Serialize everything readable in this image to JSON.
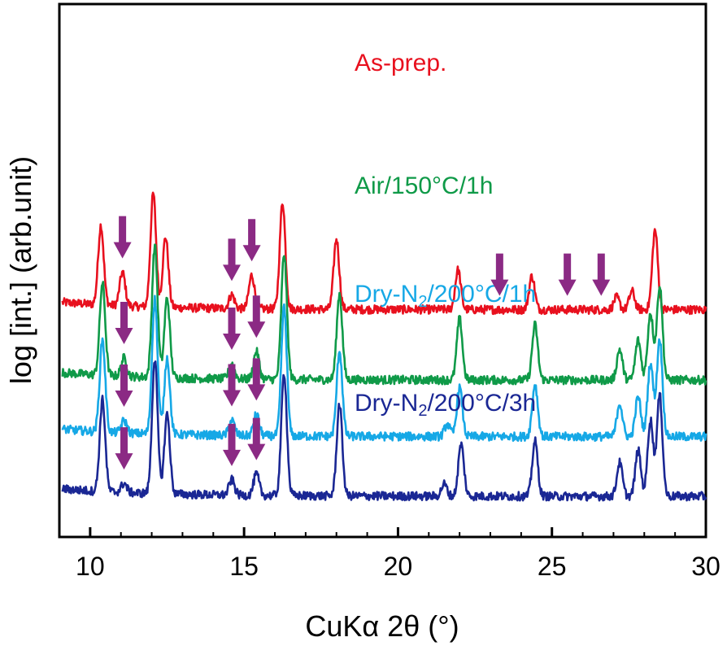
{
  "chart_data": {
    "type": "line",
    "title": "",
    "xlabel": "CuKα 2θ (°)",
    "ylabel": "log [int.] (arb.unit)",
    "xlim": [
      9,
      30
    ],
    "xticks": [
      10,
      15,
      20,
      25,
      30
    ],
    "y_ticks_shown": false,
    "grid": false,
    "legend": "none; series labeled inline above each trace",
    "series": [
      {
        "key": "as_prep",
        "label_parts": [
          [
            "As-prep.",
            ""
          ]
        ],
        "color": "#e8101e",
        "baseline": 6.1,
        "noise": 0.14,
        "peaks": [
          [
            10.35,
            2.6
          ],
          [
            11.05,
            1.1
          ],
          [
            12.05,
            3.7
          ],
          [
            12.45,
            2.3
          ],
          [
            14.6,
            0.45
          ],
          [
            15.25,
            1.1
          ],
          [
            16.25,
            3.5
          ],
          [
            18.0,
            2.3
          ],
          [
            21.95,
            1.3
          ],
          [
            24.35,
            1.1
          ],
          [
            27.1,
            0.4
          ],
          [
            27.6,
            0.6
          ],
          [
            28.35,
            2.6
          ]
        ],
        "arrows": [
          11.05,
          14.6,
          15.25,
          23.3,
          25.5,
          26.6
        ]
      },
      {
        "key": "air",
        "label_parts": [
          [
            "Air/150°C/1h",
            ""
          ]
        ],
        "color": "#0f9a48",
        "baseline": 3.8,
        "noise": 0.14,
        "peaks": [
          [
            10.4,
            3.0
          ],
          [
            11.1,
            0.6
          ],
          [
            12.1,
            4.3
          ],
          [
            12.5,
            2.6
          ],
          [
            14.6,
            0.5
          ],
          [
            15.4,
            0.9
          ],
          [
            16.3,
            4.1
          ],
          [
            18.1,
            2.8
          ],
          [
            22.0,
            2.0
          ],
          [
            24.45,
            1.8
          ],
          [
            27.2,
            1.0
          ],
          [
            27.8,
            1.3
          ],
          [
            28.2,
            2.2
          ],
          [
            28.5,
            3.1
          ]
        ],
        "arrows": [
          11.1,
          14.6,
          15.4
        ]
      },
      {
        "key": "dry1h",
        "label_parts": [
          [
            "Dry-N",
            ""
          ],
          [
            "2",
            "sub"
          ],
          [
            "/200°C/1h",
            ""
          ]
        ],
        "color": "#16a8e6",
        "baseline": 1.95,
        "noise": 0.14,
        "peaks": [
          [
            10.4,
            3.0
          ],
          [
            11.1,
            0.4
          ],
          [
            12.1,
            4.4
          ],
          [
            12.5,
            2.5
          ],
          [
            14.6,
            0.5
          ],
          [
            15.4,
            0.7
          ],
          [
            16.3,
            4.2
          ],
          [
            18.1,
            2.8
          ],
          [
            21.6,
            0.4
          ],
          [
            22.0,
            1.6
          ],
          [
            24.45,
            1.7
          ],
          [
            27.2,
            1.1
          ],
          [
            27.8,
            1.3
          ],
          [
            28.2,
            2.4
          ],
          [
            28.5,
            3.2
          ]
        ],
        "arrows": [
          11.1,
          14.6,
          15.4
        ]
      },
      {
        "key": "dry3h",
        "label_parts": [
          [
            "Dry-N",
            ""
          ],
          [
            "2",
            "sub"
          ],
          [
            "/200°C/3h",
            ""
          ]
        ],
        "color": "#1a2794",
        "baseline": 0.0,
        "noise": 0.14,
        "peaks": [
          [
            10.4,
            3.0
          ],
          [
            11.1,
            0.3
          ],
          [
            12.1,
            4.4
          ],
          [
            12.5,
            2.6
          ],
          [
            14.6,
            0.5
          ],
          [
            15.4,
            0.7
          ],
          [
            16.3,
            4.0
          ],
          [
            18.1,
            3.0
          ],
          [
            21.5,
            0.4
          ],
          [
            22.05,
            1.7
          ],
          [
            24.45,
            1.8
          ],
          [
            27.2,
            1.1
          ],
          [
            27.8,
            1.5
          ],
          [
            28.2,
            2.5
          ],
          [
            28.5,
            3.3
          ]
        ],
        "arrows": [
          11.1,
          14.6,
          15.4
        ]
      }
    ],
    "arrow_color": "#8b2a84"
  }
}
